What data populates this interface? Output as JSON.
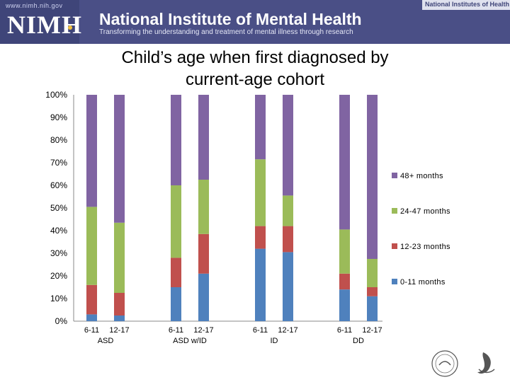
{
  "header": {
    "url": "www.nimh.nih.gov",
    "logo": "NIMH",
    "org_title": "National Institute of Mental Health",
    "tagline": "Transforming the understanding and treatment of mental illness through research",
    "parent_org": "National Institutes of Health"
  },
  "colors": {
    "banner": "#4a4f86",
    "s0": "#4f81bd",
    "s1": "#c0504d",
    "s2": "#9bbb59",
    "s3": "#8064a2"
  },
  "chart_data": {
    "type": "bar",
    "stacked": true,
    "title": "Child’s age when first diagnosed by current-age cohort",
    "groups": [
      "ASD",
      "ASD w/ID",
      "ID",
      "DD"
    ],
    "cohorts": [
      "6-11",
      "12-17"
    ],
    "categories": [
      "6-11 ASD",
      "12-17 ASD",
      "6-11 ASD w/ID",
      "12-17 ASD w/ID",
      "6-11 ID",
      "12-17 ID",
      "6-11 DD",
      "12-17 DD"
    ],
    "series": [
      {
        "name": "0-11 months",
        "values": [
          3,
          2.5,
          15,
          21,
          32,
          30.5,
          14,
          11
        ]
      },
      {
        "name": "12-23 months",
        "values": [
          13,
          10,
          13,
          17.5,
          10,
          11.5,
          7,
          4
        ]
      },
      {
        "name": "24-47 months",
        "values": [
          34.5,
          31,
          32,
          24,
          29.5,
          13.5,
          19.5,
          12.5
        ]
      },
      {
        "name": "48+ months",
        "values": [
          49.5,
          56.5,
          40,
          37.5,
          28.5,
          44.5,
          59.5,
          72.5
        ]
      }
    ],
    "legend_order": [
      "48+ months",
      "24-47 months",
      "12-23 months",
      "0-11 months"
    ],
    "y_ticks": [
      "0%",
      "10%",
      "20%",
      "30%",
      "40%",
      "50%",
      "60%",
      "70%",
      "80%",
      "90%",
      "100%"
    ],
    "ylim": [
      0,
      100
    ],
    "legend_position": "right"
  }
}
